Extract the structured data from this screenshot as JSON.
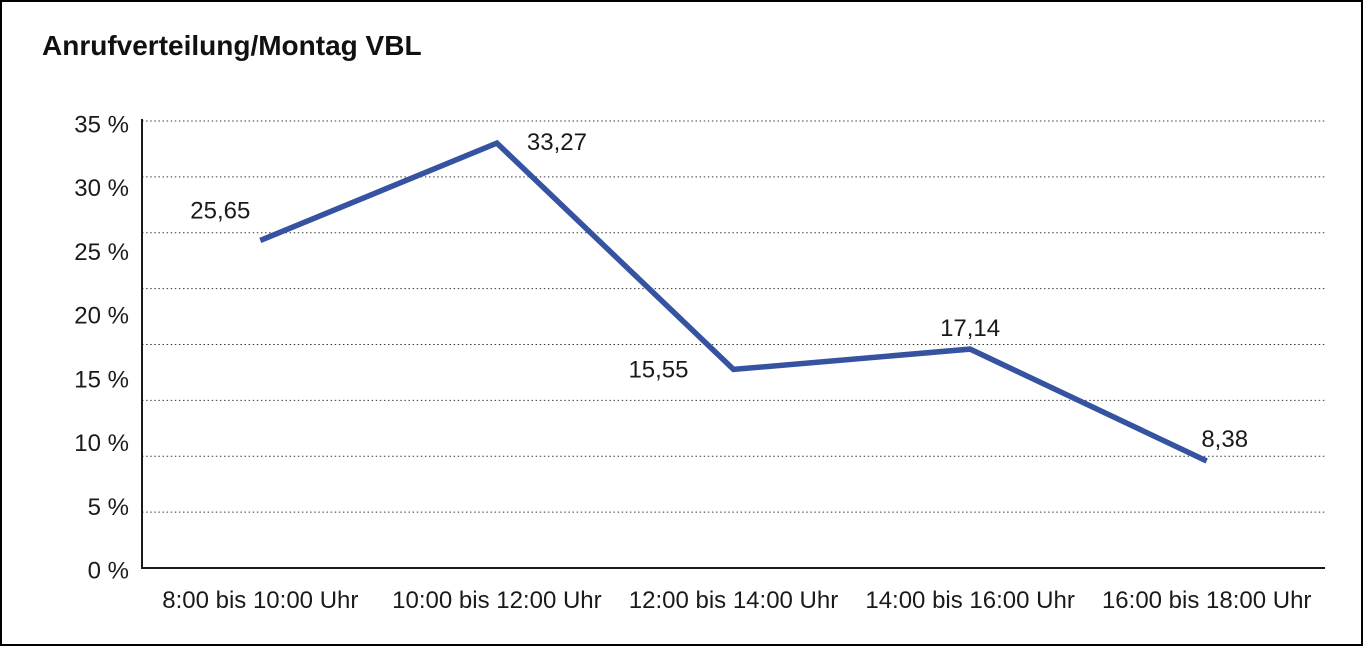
{
  "title": "Anrufverteilung/Montag VBL",
  "colors": {
    "line": "#3553A0",
    "axis": "#1a1a1a",
    "grid": "#3a3a3a",
    "text": "#1a1a1a",
    "background": "#ffffff",
    "border": "#000000"
  },
  "chart_data": {
    "type": "line",
    "title": "Anrufverteilung/Montag VBL",
    "categories": [
      "8:00 bis 10:00 Uhr",
      "10:00 bis 12:00 Uhr",
      "12:00 bis 14:00 Uhr",
      "14:00 bis 16:00 Uhr",
      "16:00 bis 18:00 Uhr"
    ],
    "values": [
      25.65,
      33.27,
      15.55,
      17.14,
      8.38
    ],
    "value_labels": [
      "25,65",
      "33,27",
      "15,55",
      "17,14",
      "8,38"
    ],
    "y_tick_labels": [
      "35 %",
      "30 %",
      "25 %",
      "20 %",
      "15 %",
      "10 %",
      "5 %",
      "0 %"
    ],
    "xlabel": "",
    "ylabel": "",
    "ylim": [
      0,
      35
    ],
    "grid": "horizontal-dotted",
    "legend": "none",
    "series_color": "#3553A0"
  }
}
